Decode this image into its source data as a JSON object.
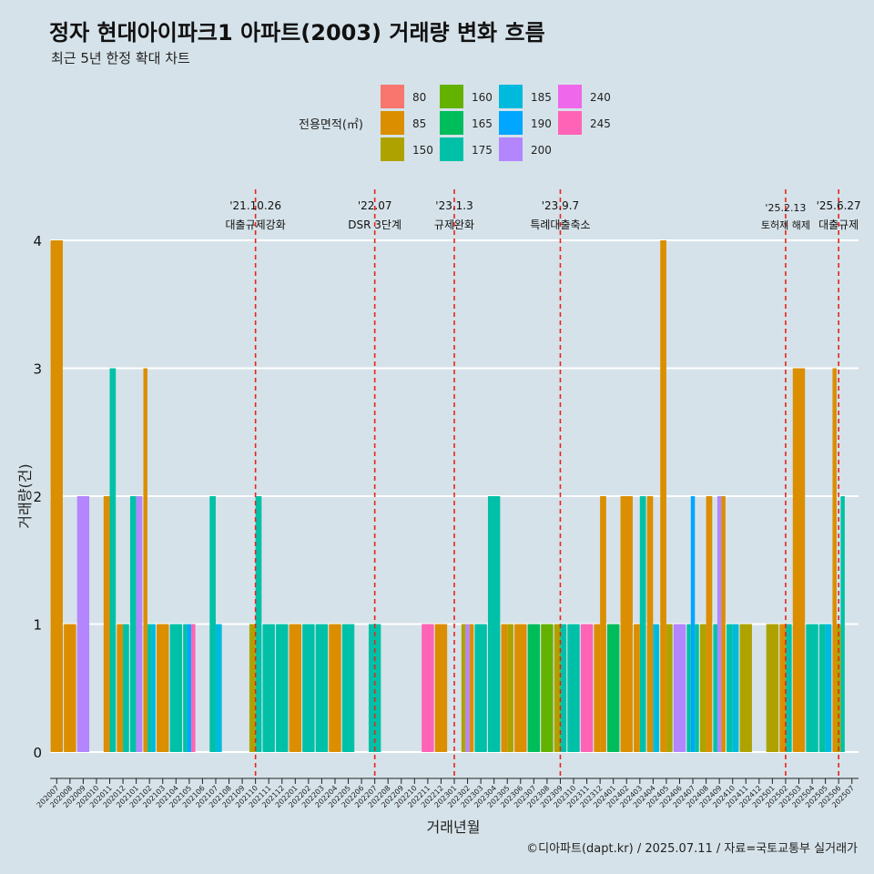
{
  "chart_data": {
    "type": "bar",
    "title": "정자 현대아이파크1 아파트(2003) 거래량 변화 흐름",
    "subtitle": "최근 5년 한정 확대 차트",
    "xlabel": "거래년월",
    "ylabel": "거래량(건)",
    "ylim": [
      0,
      4
    ],
    "yticks": [
      0,
      1,
      2,
      3,
      4
    ],
    "caption": "©디아파트(dapt.kr) / 2025.07.11 / 자료=국토교통부 실거래가",
    "legend": {
      "title": "전용면적(㎡)",
      "items": [
        {
          "label": "80",
          "color": "#F8766D"
        },
        {
          "label": "85",
          "color": "#DB8E00"
        },
        {
          "label": "150",
          "color": "#AEA200"
        },
        {
          "label": "160",
          "color": "#64B200"
        },
        {
          "label": "165",
          "color": "#00BD5C"
        },
        {
          "label": "175",
          "color": "#00C1A7"
        },
        {
          "label": "185",
          "color": "#00BADE"
        },
        {
          "label": "190",
          "color": "#00A6FF"
        },
        {
          "label": "200",
          "color": "#B385FF"
        },
        {
          "label": "240",
          "color": "#EF67EB"
        },
        {
          "label": "245",
          "color": "#FF63B6"
        }
      ]
    },
    "months": [
      "202007",
      "202008",
      "202009",
      "202010",
      "202011",
      "202012",
      "202101",
      "202102",
      "202103",
      "202104",
      "202105",
      "202106",
      "202107",
      "202108",
      "202109",
      "202110",
      "202111",
      "202112",
      "202201",
      "202202",
      "202203",
      "202204",
      "202205",
      "202206",
      "202207",
      "202208",
      "202209",
      "202210",
      "202211",
      "202212",
      "202301",
      "202302",
      "202303",
      "202304",
      "202305",
      "202306",
      "202307",
      "202308",
      "202309",
      "202310",
      "202311",
      "202312",
      "202401",
      "202402",
      "202403",
      "202404",
      "202405",
      "202406",
      "202407",
      "202408",
      "202409",
      "202410",
      "202411",
      "202412",
      "202501",
      "202502",
      "202503",
      "202504",
      "202505",
      "202506",
      "202507"
    ],
    "bars": [
      {
        "month": "202007",
        "segments": [
          {
            "area": "85",
            "value": 4
          }
        ]
      },
      {
        "month": "202008",
        "segments": [
          {
            "area": "85",
            "value": 1
          }
        ]
      },
      {
        "month": "202009",
        "segments": [
          {
            "area": "200",
            "value": 2
          }
        ]
      },
      {
        "month": "202011",
        "segments": [
          {
            "area": "85",
            "value": 2
          },
          {
            "area": "175",
            "value": 3
          }
        ]
      },
      {
        "month": "202012",
        "segments": [
          {
            "area": "85",
            "value": 1
          },
          {
            "area": "175",
            "value": 1
          }
        ]
      },
      {
        "month": "202101",
        "segments": [
          {
            "area": "175",
            "value": 2
          },
          {
            "area": "200",
            "value": 2
          }
        ]
      },
      {
        "month": "202102",
        "segments": [
          {
            "area": "85",
            "value": 3
          },
          {
            "area": "175",
            "value": 1
          },
          {
            "area": "185",
            "value": 1
          }
        ]
      },
      {
        "month": "202103",
        "segments": [
          {
            "area": "85",
            "value": 1
          }
        ]
      },
      {
        "month": "202104",
        "segments": [
          {
            "area": "175",
            "value": 1
          }
        ]
      },
      {
        "month": "202105",
        "segments": [
          {
            "area": "175",
            "value": 1
          },
          {
            "area": "190",
            "value": 1
          },
          {
            "area": "245",
            "value": 1
          }
        ]
      },
      {
        "month": "202107",
        "segments": [
          {
            "area": "175",
            "value": 2
          },
          {
            "area": "185",
            "value": 1
          }
        ]
      },
      {
        "month": "202110",
        "segments": [
          {
            "area": "150",
            "value": 1
          },
          {
            "area": "175",
            "value": 2
          }
        ]
      },
      {
        "month": "202111",
        "segments": [
          {
            "area": "175",
            "value": 1
          }
        ]
      },
      {
        "month": "202112",
        "segments": [
          {
            "area": "175",
            "value": 1
          }
        ]
      },
      {
        "month": "202201",
        "segments": [
          {
            "area": "85",
            "value": 1
          }
        ]
      },
      {
        "month": "202202",
        "segments": [
          {
            "area": "175",
            "value": 1
          }
        ]
      },
      {
        "month": "202203",
        "segments": [
          {
            "area": "175",
            "value": 1
          }
        ]
      },
      {
        "month": "202204",
        "segments": [
          {
            "area": "85",
            "value": 1
          }
        ]
      },
      {
        "month": "202205",
        "segments": [
          {
            "area": "175",
            "value": 1
          }
        ]
      },
      {
        "month": "202207",
        "segments": [
          {
            "area": "175",
            "value": 1
          }
        ]
      },
      {
        "month": "202211",
        "segments": [
          {
            "area": "245",
            "value": 1
          }
        ]
      },
      {
        "month": "202212",
        "segments": [
          {
            "area": "85",
            "value": 1
          }
        ]
      },
      {
        "month": "202302",
        "segments": [
          {
            "area": "150",
            "value": 1
          },
          {
            "area": "200",
            "value": 1
          },
          {
            "area": "85",
            "value": 1
          }
        ]
      },
      {
        "month": "202303",
        "segments": [
          {
            "area": "175",
            "value": 1
          }
        ]
      },
      {
        "month": "202304",
        "segments": [
          {
            "area": "175",
            "value": 2
          }
        ]
      },
      {
        "month": "202305",
        "segments": [
          {
            "area": "85",
            "value": 1
          },
          {
            "area": "150",
            "value": 1
          }
        ]
      },
      {
        "month": "202306",
        "segments": [
          {
            "area": "85",
            "value": 1
          }
        ]
      },
      {
        "month": "202307",
        "segments": [
          {
            "area": "165",
            "value": 1
          }
        ]
      },
      {
        "month": "202308",
        "segments": [
          {
            "area": "160",
            "value": 1
          }
        ]
      },
      {
        "month": "202309",
        "segments": [
          {
            "area": "150",
            "value": 1
          },
          {
            "area": "175",
            "value": 1
          }
        ]
      },
      {
        "month": "202310",
        "segments": [
          {
            "area": "175",
            "value": 1
          }
        ]
      },
      {
        "month": "202311",
        "segments": [
          {
            "area": "245",
            "value": 1
          }
        ]
      },
      {
        "month": "202312",
        "segments": [
          {
            "area": "85",
            "value": 1
          },
          {
            "area": "85",
            "value": 2
          }
        ]
      },
      {
        "month": "202401",
        "segments": [
          {
            "area": "165",
            "value": 1
          }
        ]
      },
      {
        "month": "202402",
        "segments": [
          {
            "area": "85",
            "value": 2
          }
        ]
      },
      {
        "month": "202403",
        "segments": [
          {
            "area": "85",
            "value": 1
          },
          {
            "area": "175",
            "value": 2
          }
        ]
      },
      {
        "month": "202404",
        "segments": [
          {
            "area": "85",
            "value": 2
          },
          {
            "area": "185",
            "value": 1
          }
        ]
      },
      {
        "month": "202405",
        "segments": [
          {
            "area": "85",
            "value": 4
          },
          {
            "area": "150",
            "value": 1
          }
        ]
      },
      {
        "month": "202406",
        "segments": [
          {
            "area": "200",
            "value": 1
          }
        ]
      },
      {
        "month": "202407",
        "segments": [
          {
            "area": "175",
            "value": 1
          },
          {
            "area": "190",
            "value": 2
          },
          {
            "area": "175",
            "value": 1
          }
        ]
      },
      {
        "month": "202408",
        "segments": [
          {
            "area": "150",
            "value": 1
          },
          {
            "area": "85",
            "value": 2
          }
        ]
      },
      {
        "month": "202409",
        "segments": [
          {
            "area": "175",
            "value": 1
          },
          {
            "area": "200",
            "value": 2
          },
          {
            "area": "85",
            "value": 2
          }
        ]
      },
      {
        "month": "202410",
        "segments": [
          {
            "area": "175",
            "value": 1
          },
          {
            "area": "185",
            "value": 1
          }
        ]
      },
      {
        "month": "202411",
        "segments": [
          {
            "area": "150",
            "value": 1
          }
        ]
      },
      {
        "month": "202501",
        "segments": [
          {
            "area": "150",
            "value": 1
          }
        ]
      },
      {
        "month": "202502",
        "segments": [
          {
            "area": "85",
            "value": 1
          },
          {
            "area": "175",
            "value": 1
          }
        ]
      },
      {
        "month": "202503",
        "segments": [
          {
            "area": "85",
            "value": 3
          }
        ]
      },
      {
        "month": "202504",
        "segments": [
          {
            "area": "175",
            "value": 1
          }
        ]
      },
      {
        "month": "202505",
        "segments": [
          {
            "area": "175",
            "value": 1
          },
          {
            "area": "185",
            "value": 1
          }
        ]
      },
      {
        "month": "202506",
        "segments": [
          {
            "area": "85",
            "value": 3
          },
          {
            "area": "150",
            "value": 1
          },
          {
            "area": "175",
            "value": 2
          }
        ]
      }
    ],
    "events": [
      {
        "month": "202110",
        "date": "'21.10.26",
        "label": "대출규제강화"
      },
      {
        "month": "202207",
        "date": "'22.07",
        "label": "DSR 3단계"
      },
      {
        "month": "202301",
        "date": "'23.1.3",
        "label": "규제완화"
      },
      {
        "month": "202309",
        "date": "'23.9.7",
        "label": "특례대출축소"
      },
      {
        "month": "202502",
        "date": "'25.2.13",
        "label": "토허제 해제"
      },
      {
        "month": "202506",
        "date": "'25.6.27",
        "label": "대출규제"
      }
    ]
  }
}
